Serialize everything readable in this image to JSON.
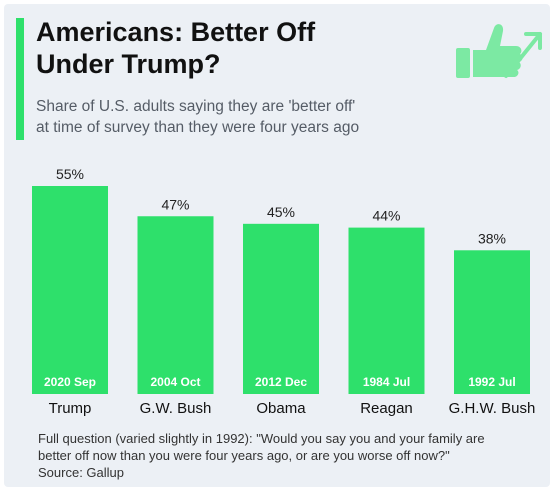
{
  "header": {
    "title_line1": "Americans: Better Off",
    "title_line2": "Under Trump?",
    "subtitle_line1": "Share of U.S. adults saying they are 'better off'",
    "subtitle_line2": "at time of survey than they were four years ago"
  },
  "footer": {
    "note_line1": "Full question (varied slightly in 1992): \"Would you say you and your family are",
    "note_line2": "better off now than you were four years ago, or are you worse off now?\"",
    "source": "Source: Gallup"
  },
  "icons": {
    "thumbs_up": "thumbs-up-icon",
    "arrow": "arrow-up-right-icon"
  },
  "colors": {
    "bar": "#2ee06b",
    "accent": "#2ee06b",
    "icon": "#7ce9a3",
    "background": "#ecf0f5"
  },
  "chart_data": {
    "type": "bar",
    "title": "Americans: Better Off Under Trump?",
    "subtitle": "Share of U.S. adults saying they are 'better off' at time of survey than they were four years ago",
    "categories": [
      "Trump",
      "G.W. Bush",
      "Obama",
      "Reagan",
      "G.H.W. Bush"
    ],
    "survey_dates": [
      "2020 Sep",
      "2004 Oct",
      "2012 Dec",
      "1984 Jul",
      "1992 Jul"
    ],
    "values": [
      55,
      47,
      45,
      44,
      38
    ],
    "value_labels": [
      "55%",
      "47%",
      "45%",
      "44%",
      "38%"
    ],
    "unit": "%",
    "ylim": [
      0,
      55
    ],
    "grid": false,
    "legend": "none"
  }
}
